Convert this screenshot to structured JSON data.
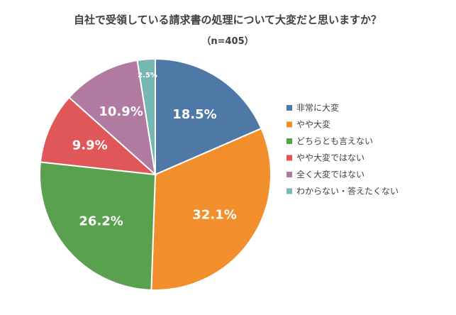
{
  "chart_data": {
    "type": "pie",
    "title": "自社で受領している請求書の処理について大変だと思いますか？",
    "subtitle": "（n=405）",
    "categories": [
      "非常に大変",
      "やや大変",
      "どちらとも言えない",
      "やや大変ではない",
      "全く大変ではない",
      "わからない・答えたくない"
    ],
    "values": [
      18.5,
      32.1,
      26.2,
      9.9,
      10.9,
      2.5
    ],
    "value_labels": [
      "18.5%",
      "32.1%",
      "26.2%",
      "9.9%",
      "10.9%",
      "2.5%"
    ],
    "colors": [
      "#4E79A7",
      "#F28E2B",
      "#59A14F",
      "#E15759",
      "#B07AA1",
      "#76B7B2"
    ],
    "legend_position": "right",
    "start_angle": "top",
    "direction": "clockwise"
  }
}
